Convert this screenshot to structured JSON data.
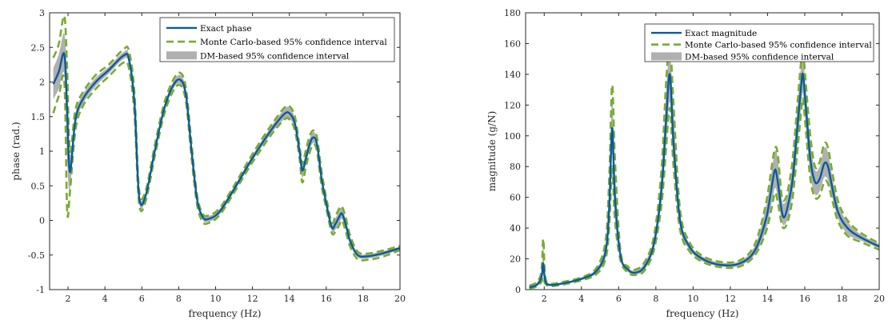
{
  "colors": {
    "exact": "#0b5a9c",
    "mc": "#77ac30",
    "dm": "#b0b0b0",
    "axis": "#262626"
  },
  "chart_data": [
    {
      "type": "line",
      "title": "",
      "xlabel": "frequency (Hz)",
      "ylabel": "phase (rad.)",
      "xlim": [
        1,
        20
      ],
      "ylim": [
        -1,
        3
      ],
      "xticks": [
        2,
        4,
        6,
        8,
        10,
        12,
        14,
        16,
        18,
        20
      ],
      "yticks": [
        -1,
        -0.5,
        0,
        0.5,
        1,
        1.5,
        2,
        2.5,
        3
      ],
      "xtick_labels": [
        "2",
        "4",
        "6",
        "8",
        "10",
        "12",
        "14",
        "16",
        "18",
        "20"
      ],
      "ytick_labels": [
        "-1",
        "-0.5",
        "0",
        "0.5",
        "1",
        "1.5",
        "2",
        "2.5",
        "3"
      ],
      "legend_position": "top-right",
      "legend": [
        "Exact phase",
        "Monte Carlo-based 95% confidence interval",
        "DM-based 95% confidence interval"
      ],
      "x": [
        1.2,
        1.5,
        1.8,
        1.95,
        2.1,
        2.4,
        2.8,
        3.5,
        4.2,
        5.0,
        5.3,
        5.6,
        5.85,
        6.2,
        6.7,
        7.2,
        7.7,
        8.1,
        8.4,
        8.7,
        9.0,
        9.3,
        9.6,
        10.2,
        11.0,
        12.0,
        13.0,
        13.7,
        14.0,
        14.3,
        14.55,
        14.7,
        14.9,
        15.1,
        15.3,
        15.5,
        15.75,
        16.0,
        16.3,
        16.5,
        16.7,
        16.85,
        17.05,
        17.3,
        17.7,
        18.2,
        19.0,
        20.0
      ],
      "series": [
        {
          "name": "Exact phase",
          "values": [
            1.97,
            2.15,
            2.4,
            1.6,
            0.7,
            1.45,
            1.75,
            2.0,
            2.17,
            2.38,
            2.33,
            1.7,
            0.35,
            0.35,
            1.0,
            1.6,
            1.95,
            2.03,
            1.8,
            1.0,
            0.3,
            0.05,
            0.02,
            0.12,
            0.45,
            0.9,
            1.3,
            1.53,
            1.55,
            1.4,
            1.0,
            0.72,
            0.9,
            1.1,
            1.2,
            1.1,
            0.6,
            0.25,
            -0.1,
            -0.05,
            0.05,
            0.1,
            -0.05,
            -0.3,
            -0.5,
            -0.52,
            -0.48,
            -0.4
          ]
        },
        {
          "name": "Monte Carlo-based 95% confidence interval (upper)",
          "values": [
            2.35,
            2.55,
            2.95,
            2.2,
            1.0,
            1.6,
            1.85,
            2.1,
            2.25,
            2.47,
            2.45,
            1.85,
            0.45,
            0.42,
            1.08,
            1.68,
            2.03,
            2.13,
            1.9,
            1.1,
            0.36,
            0.1,
            0.07,
            0.17,
            0.5,
            0.96,
            1.37,
            1.62,
            1.65,
            1.5,
            1.08,
            0.82,
            1.02,
            1.22,
            1.3,
            1.2,
            0.7,
            0.33,
            -0.03,
            0.06,
            0.17,
            0.2,
            0.05,
            -0.22,
            -0.45,
            -0.48,
            -0.44,
            -0.37
          ]
        },
        {
          "name": "Monte Carlo-based 95% confidence interval (lower)",
          "values": [
            1.55,
            1.8,
            2.0,
            0.15,
            0.4,
            1.3,
            1.65,
            1.9,
            2.08,
            2.28,
            2.2,
            1.55,
            0.25,
            0.27,
            0.92,
            1.52,
            1.87,
            1.95,
            1.7,
            0.9,
            0.22,
            -0.02,
            -0.04,
            0.07,
            0.4,
            0.84,
            1.23,
            1.45,
            1.46,
            1.3,
            0.9,
            0.55,
            0.78,
            0.98,
            1.1,
            1.0,
            0.5,
            0.18,
            -0.18,
            -0.16,
            -0.07,
            0.0,
            -0.15,
            -0.38,
            -0.56,
            -0.57,
            -0.53,
            -0.43
          ]
        },
        {
          "name": "DM-based 95% confidence interval (upper)",
          "values": [
            2.2,
            2.4,
            2.7,
            2.0,
            0.95,
            1.55,
            1.82,
            2.06,
            2.22,
            2.43,
            2.4,
            1.8,
            0.42,
            0.4,
            1.05,
            1.65,
            2.0,
            2.1,
            1.87,
            1.06,
            0.34,
            0.09,
            0.06,
            0.16,
            0.49,
            0.94,
            1.35,
            1.6,
            1.63,
            1.47,
            1.06,
            0.8,
            0.98,
            1.18,
            1.28,
            1.17,
            0.67,
            0.31,
            -0.05,
            0.03,
            0.14,
            0.18,
            0.02,
            -0.25,
            -0.47,
            -0.49,
            -0.45,
            -0.38
          ]
        },
        {
          "name": "DM-based 95% confidence interval (lower)",
          "values": [
            1.75,
            1.9,
            2.1,
            0.9,
            0.45,
            1.35,
            1.68,
            1.94,
            2.12,
            2.33,
            2.26,
            1.6,
            0.28,
            0.3,
            0.95,
            1.55,
            1.9,
            1.97,
            1.73,
            0.94,
            0.26,
            0.01,
            -0.02,
            0.08,
            0.41,
            0.86,
            1.25,
            1.46,
            1.47,
            1.33,
            0.94,
            0.62,
            0.82,
            1.02,
            1.12,
            1.03,
            0.53,
            0.19,
            -0.15,
            -0.13,
            -0.04,
            0.02,
            -0.12,
            -0.35,
            -0.53,
            -0.55,
            -0.51,
            -0.42
          ]
        }
      ]
    },
    {
      "type": "line",
      "title": "",
      "xlabel": "frequency (Hz)",
      "ylabel": "magnitude (g/N)",
      "xlim": [
        1,
        20
      ],
      "ylim": [
        0,
        180
      ],
      "xticks": [
        2,
        4,
        6,
        8,
        10,
        12,
        14,
        16,
        18,
        20
      ],
      "yticks": [
        0,
        20,
        40,
        60,
        80,
        100,
        120,
        140,
        160,
        180
      ],
      "xtick_labels": [
        "2",
        "4",
        "6",
        "8",
        "10",
        "12",
        "14",
        "16",
        "18",
        "20"
      ],
      "ytick_labels": [
        "0",
        "20",
        "40",
        "60",
        "80",
        "100",
        "120",
        "140",
        "160",
        "180"
      ],
      "legend_position": "top-right",
      "legend": [
        "Exact magnitude",
        "Monte Carlo-based 95% confidence interval",
        "DM-based 95% confidence interval"
      ],
      "x": [
        1.2,
        1.6,
        1.85,
        1.95,
        2.05,
        2.3,
        3.0,
        4.0,
        4.8,
        5.3,
        5.5,
        5.65,
        5.8,
        6.1,
        6.5,
        6.9,
        7.4,
        7.9,
        8.3,
        8.55,
        8.75,
        8.95,
        9.3,
        9.8,
        10.5,
        11.5,
        12.5,
        13.3,
        13.9,
        14.2,
        14.4,
        14.55,
        14.75,
        14.9,
        15.1,
        15.35,
        15.6,
        15.8,
        15.9,
        16.05,
        16.3,
        16.55,
        16.8,
        17.05,
        17.25,
        17.5,
        17.8,
        18.3,
        19.0,
        20.0
      ],
      "series": [
        {
          "name": "Exact magnitude",
          "values": [
            1.5,
            3,
            8,
            17,
            6,
            3,
            4,
            7,
            12,
            25,
            55,
            105,
            60,
            22,
            13,
            11,
            15,
            30,
            65,
            110,
            140,
            95,
            45,
            28,
            20,
            16,
            17,
            25,
            45,
            65,
            78,
            70,
            52,
            47,
            55,
            72,
            105,
            132,
            140,
            120,
            85,
            70,
            72,
            82,
            80,
            65,
            50,
            40,
            34,
            28
          ]
        },
        {
          "name": "Monte Carlo-based 95% confidence interval (upper)",
          "values": [
            2.5,
            5,
            12,
            33,
            9,
            4,
            5,
            8,
            14,
            32,
            75,
            133,
            85,
            25,
            15,
            13,
            18,
            35,
            78,
            135,
            160,
            120,
            52,
            31,
            22,
            18,
            19,
            29,
            55,
            78,
            92,
            88,
            62,
            58,
            65,
            85,
            120,
            148,
            156,
            135,
            100,
            80,
            83,
            95,
            92,
            75,
            57,
            45,
            37,
            30
          ]
        },
        {
          "name": "Monte Carlo-based 95% confidence interval (lower)",
          "values": [
            0.8,
            2,
            5,
            8,
            4,
            2.2,
            3.3,
            6,
            10,
            20,
            42,
            80,
            45,
            19,
            11,
            9.5,
            12.5,
            26,
            55,
            92,
            118,
            80,
            39,
            25,
            18,
            14.5,
            15,
            22,
            37,
            52,
            63,
            57,
            43,
            40,
            45,
            60,
            90,
            115,
            124,
            105,
            72,
            60,
            61,
            70,
            69,
            57,
            44,
            35,
            31,
            26
          ]
        },
        {
          "name": "DM-based 95% confidence interval (upper)",
          "values": [
            2.2,
            4.5,
            11,
            28,
            8,
            3.8,
            4.8,
            7.8,
            13.5,
            30,
            70,
            125,
            78,
            24,
            14.5,
            12.5,
            17.5,
            34,
            75,
            128,
            155,
            115,
            50,
            30,
            21.5,
            17.5,
            18.5,
            28,
            53,
            75,
            90,
            85,
            60,
            56,
            63,
            82,
            118,
            145,
            152,
            132,
            96,
            78,
            80,
            92,
            89,
            72,
            55,
            44,
            36,
            29.5
          ]
        },
        {
          "name": "DM-based 95% confidence interval (lower)",
          "values": [
            1.0,
            2.3,
            6,
            10,
            4.5,
            2.4,
            3.4,
            6.2,
            10.5,
            21,
            45,
            88,
            48,
            20,
            11.5,
            9.8,
            13,
            27,
            57,
            95,
            122,
            83,
            40,
            26,
            18.5,
            15,
            15.5,
            22.5,
            38,
            55,
            66,
            60,
            45,
            42,
            47,
            63,
            93,
            118,
            128,
            108,
            75,
            62,
            64,
            73,
            71,
            59,
            46,
            36,
            32,
            27
          ]
        }
      ]
    }
  ]
}
